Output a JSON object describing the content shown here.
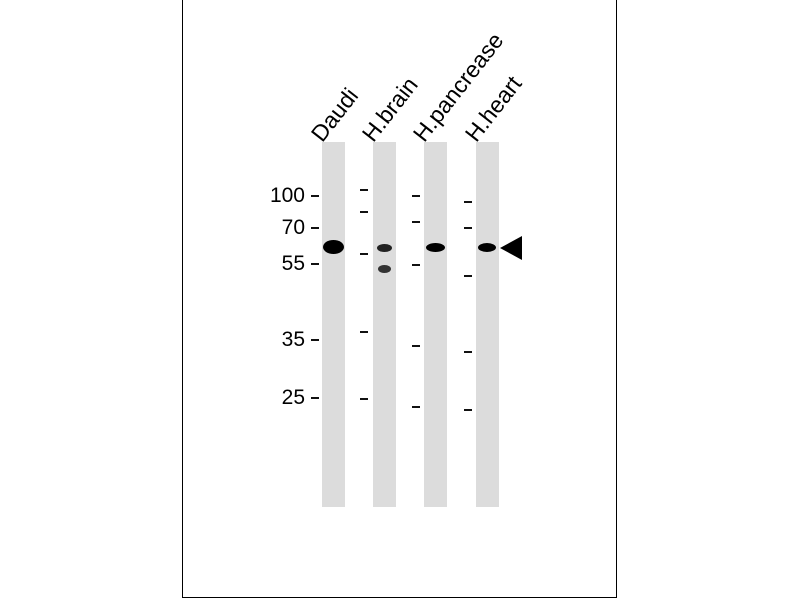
{
  "lanes": [
    {
      "label": "Daudi"
    },
    {
      "label": "H.brain"
    },
    {
      "label": "H.pancrease"
    },
    {
      "label": "H.heart"
    }
  ],
  "markers": [
    "100",
    "70",
    "55",
    "35",
    "25"
  ],
  "arrow_icon": "left-pointing-triangle"
}
